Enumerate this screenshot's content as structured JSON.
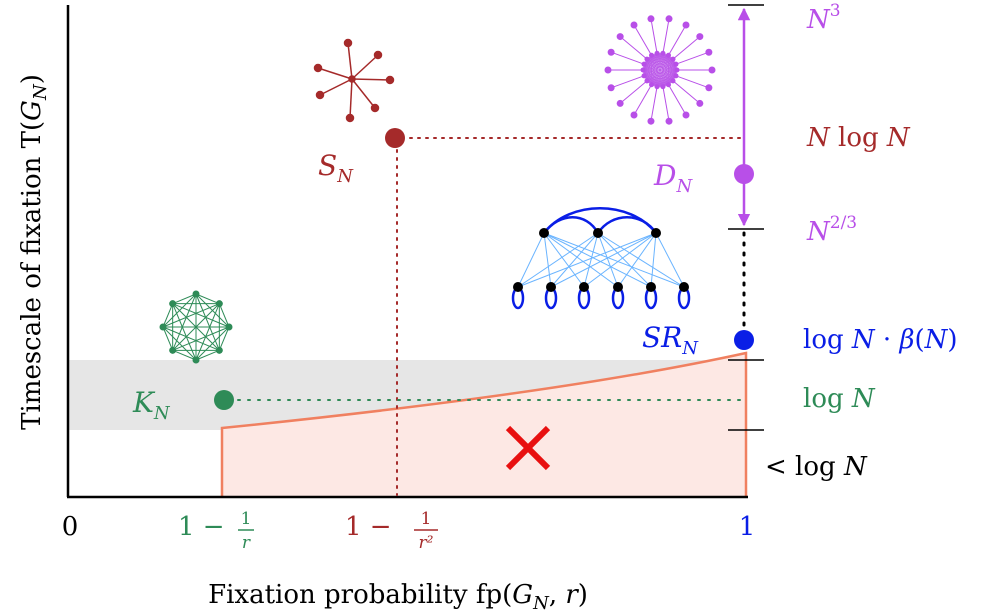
{
  "axes": {
    "ylabel": "Timescale of fixation T(G_N)",
    "xlabel": "Fixation probability fp(G_N, r)"
  },
  "x_ticks": {
    "zero": "0",
    "t1": "1 − 1/r",
    "t2": "1 − 1/r²",
    "one": "1"
  },
  "y_ticks": {
    "n3": "N³",
    "nlogn": "N log N",
    "n23": "N^(2/3)",
    "logn_beta": "log N · β(N)",
    "logn": "log N",
    "lt_logn": "< log N"
  },
  "graphs": {
    "K": "K_N",
    "S": "S_N",
    "D": "D_N",
    "SR": "SR_N"
  },
  "colors": {
    "K": "#2e8b57",
    "S": "#a52a2a",
    "D": "#b84fe8",
    "SR": "#0a1ee6",
    "forbidden": "#f08060",
    "band": "#e6e6e6"
  },
  "icons": {
    "cross": "x-mark-icon"
  }
}
